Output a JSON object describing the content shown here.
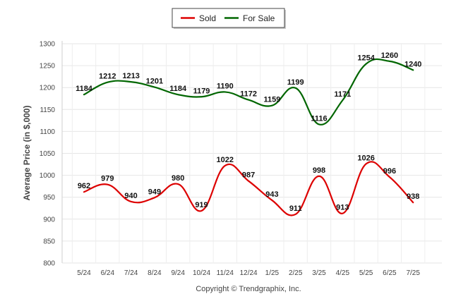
{
  "chart_data": {
    "type": "line",
    "categories": [
      "5/24",
      "6/24",
      "7/24",
      "8/24",
      "9/24",
      "10/24",
      "11/24",
      "12/24",
      "1/25",
      "2/25",
      "3/25",
      "4/25",
      "5/25",
      "6/25",
      "7/25"
    ],
    "series": [
      {
        "name": "Sold",
        "color": "#dd0000",
        "values": [
          962,
          979,
          940,
          949,
          980,
          919,
          1022,
          987,
          943,
          911,
          998,
          913,
          1026,
          996,
          938
        ]
      },
      {
        "name": "For Sale",
        "color": "#006600",
        "values": [
          1184,
          1212,
          1213,
          1201,
          1184,
          1179,
          1190,
          1172,
          1159,
          1199,
          1116,
          1171,
          1254,
          1260,
          1240
        ]
      }
    ],
    "ylabel": "Average Price (in $,000)",
    "xlabel": "",
    "ylim": [
      800,
      1300
    ],
    "yticks": [
      800,
      850,
      900,
      950,
      1000,
      1050,
      1100,
      1150,
      1200,
      1250,
      1300
    ],
    "grid": true,
    "legend_position": "top-center"
  },
  "footer": {
    "copyright": "Copyright © Trendgraphix, Inc."
  }
}
